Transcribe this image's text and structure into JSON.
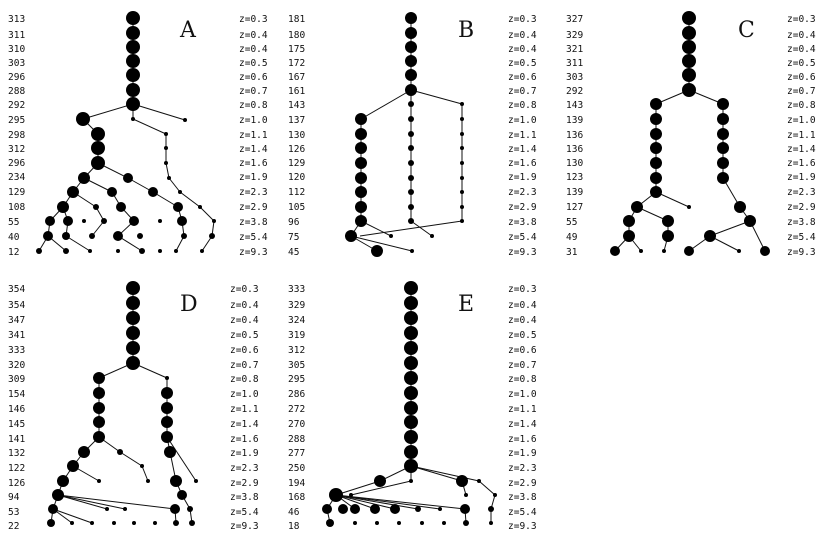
{
  "panels": [
    {
      "label": "A",
      "counts": [
        "313",
        "311",
        "310",
        "303",
        "296",
        "288",
        "292",
        "295",
        "298",
        "312",
        "296",
        "234",
        "129",
        "108",
        "55",
        "40",
        "12"
      ],
      "z": [
        "z=0.3",
        "z=0.4",
        "z=0.4",
        "z=0.5",
        "z=0.6",
        "z=0.7",
        "z=0.8",
        "z=1.0",
        "z=1.1",
        "z=1.4",
        "z=1.6",
        "z=1.9",
        "z=2.3",
        "z=2.9",
        "z=3.8",
        "z=5.4",
        "z=9.3"
      ]
    },
    {
      "label": "B",
      "counts": [
        "181",
        "180",
        "175",
        "172",
        "167",
        "161",
        "143",
        "137",
        "130",
        "126",
        "129",
        "120",
        "112",
        "105",
        "96",
        "75",
        "45"
      ],
      "z": [
        "z=0.3",
        "z=0.4",
        "z=0.4",
        "z=0.5",
        "z=0.6",
        "z=0.7",
        "z=0.8",
        "z=1.0",
        "z=1.1",
        "z=1.4",
        "z=1.6",
        "z=1.9",
        "z=2.3",
        "z=2.9",
        "z=3.8",
        "z=5.4",
        "z=9.3"
      ]
    },
    {
      "label": "C",
      "counts": [
        "327",
        "329",
        "321",
        "311",
        "303",
        "292",
        "143",
        "139",
        "136",
        "136",
        "130",
        "123",
        "139",
        "127",
        "55",
        "49",
        "31"
      ],
      "z": [
        "z=0.3",
        "z=0.4",
        "z=0.4",
        "z=0.5",
        "z=0.6",
        "z=0.7",
        "z=0.8",
        "z=1.0",
        "z=1.1",
        "z=1.4",
        "z=1.6",
        "z=1.9",
        "z=2.3",
        "z=2.9",
        "z=3.8",
        "z=5.4",
        "z=9.3"
      ]
    },
    {
      "label": "D",
      "counts": [
        "354",
        "354",
        "347",
        "341",
        "333",
        "320",
        "309",
        "154",
        "146",
        "145",
        "141",
        "132",
        "122",
        "126",
        "94",
        "53",
        "22"
      ],
      "z": [
        "z=0.3",
        "z=0.4",
        "z=0.4",
        "z=0.5",
        "z=0.6",
        "z=0.7",
        "z=0.8",
        "z=1.0",
        "z=1.1",
        "z=1.4",
        "z=1.6",
        "z=1.9",
        "z=2.3",
        "z=2.9",
        "z=3.8",
        "z=5.4",
        "z=9.3"
      ]
    },
    {
      "label": "E",
      "counts": [
        "333",
        "329",
        "324",
        "319",
        "312",
        "305",
        "295",
        "286",
        "272",
        "270",
        "288",
        "277",
        "250",
        "194",
        "168",
        "46",
        "18"
      ],
      "z": [
        "z=0.3",
        "z=0.4",
        "z=0.4",
        "z=0.5",
        "z=0.6",
        "z=0.7",
        "z=0.8",
        "z=1.0",
        "z=1.1",
        "z=1.4",
        "z=1.6",
        "z=1.9",
        "z=2.3",
        "z=2.9",
        "z=3.8",
        "z=5.4",
        "z=9.3"
      ]
    }
  ]
}
